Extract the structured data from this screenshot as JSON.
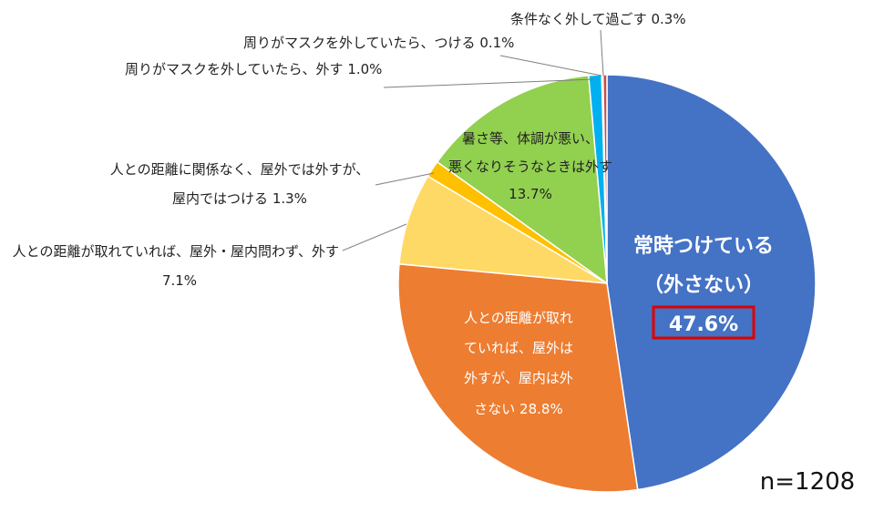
{
  "chart_data": {
    "type": "pie",
    "start_angle_deg": 0,
    "direction": "clockwise",
    "slices": [
      {
        "key": "always",
        "name_lines": [
          "常時つけている",
          "（外さない）"
        ],
        "value_label": "47.6%",
        "value": 47.6,
        "color": "#4472C4"
      },
      {
        "key": "distance_outdoor_only",
        "name_lines": [
          "人との距離が取れ",
          "ていれば、屋外は",
          "外すが、屋内は外",
          "さない"
        ],
        "value_label": "28.8%",
        "value": 28.8,
        "color": "#ED7D31"
      },
      {
        "key": "distance_both",
        "name_lines": [
          "人との距離が取れていれば、屋外・屋内問わず、外す"
        ],
        "value_label": "7.1%",
        "value": 7.1,
        "color": "#FFD966"
      },
      {
        "key": "outdoor_regardless",
        "name_lines": [
          "人との距離に関係なく、屋外では外すが、",
          "屋内ではつける"
        ],
        "value_label": "1.3%",
        "value": 1.3,
        "color": "#FFC000"
      },
      {
        "key": "heat_health",
        "name_lines": [
          "暑さ等、体調が悪い、",
          "悪くなりそうなときは外す"
        ],
        "value_label": "13.7%",
        "value": 13.7,
        "color": "#92D050"
      },
      {
        "key": "others_remove",
        "name_lines": [
          "周りがマスクを外していたら、外す"
        ],
        "value_label": "1.0%",
        "value": 1.0,
        "color": "#00B0F0"
      },
      {
        "key": "others_wear",
        "name_lines": [
          "周りがマスクを外していたら、つける"
        ],
        "value_label": "0.1%",
        "value": 0.1,
        "color": "#2E5597"
      },
      {
        "key": "unconditional",
        "name_lines": [
          "条件なく外して過ごす"
        ],
        "value_label": "0.3%",
        "value": 0.3,
        "color": "#C0504D"
      }
    ],
    "highlight": {
      "slice": "always",
      "box_color": "#E00000"
    },
    "note": "n=1208"
  }
}
